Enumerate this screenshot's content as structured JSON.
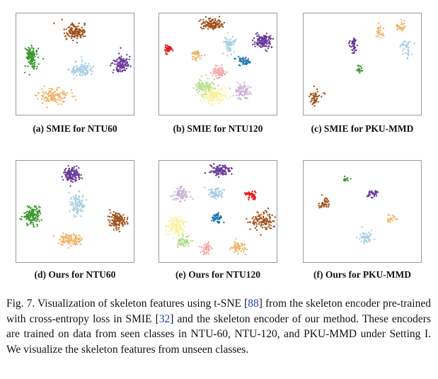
{
  "panels": [
    {
      "label": "(a) SMIE for NTU60"
    },
    {
      "label": "(b) SMIE for NTU120"
    },
    {
      "label": "(c) SMIE for PKU-MMD"
    },
    {
      "label": "(d) Ours for NTU60"
    },
    {
      "label": "(e) Ours for NTU120"
    },
    {
      "label": "(f) Ours for PKU-MMD"
    }
  ],
  "caption": {
    "p1": "Fig. 7.   Visualization of skeleton features using t-SNE [",
    "ref1": "88",
    "p2": "] from the skeleton encoder pre-trained with cross-entropy loss in SMIE [",
    "ref2": "32",
    "p3": "] and the skeleton encoder of our method. These encoders are trained on data from seen classes in NTU-60, NTU-120, and PKU-MMD under Setting I. We visualize the skeleton features from unseen classes."
  },
  "colors": {
    "green": "#3a9a2e",
    "brown": "#a0521d",
    "purple": "#6a3a9a",
    "lightblue": "#a6cee3",
    "orange": "#f0b46a",
    "red": "#e31a1c",
    "blue": "#1f78b4",
    "pink": "#f4a6a6",
    "lightgreen": "#b2df8a",
    "yellow": "#f7f29a",
    "lavender": "#cab2d6"
  }
}
